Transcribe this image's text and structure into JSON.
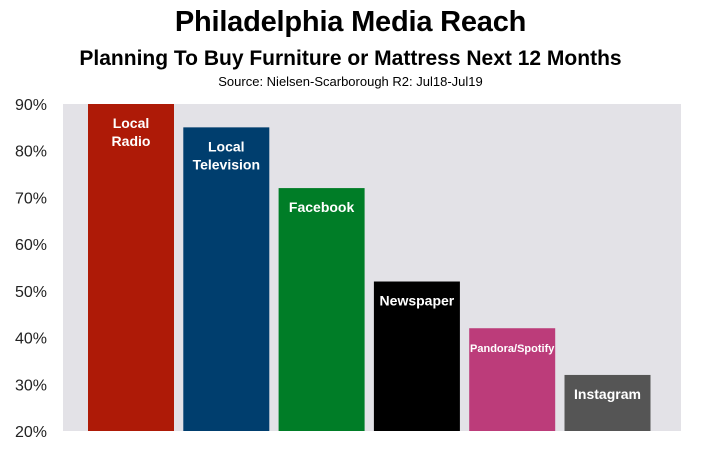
{
  "header": {
    "title": "Philadelphia Media Reach",
    "subtitle": "Planning To Buy Furniture or Mattress Next 12 Months",
    "source": "Source: Nielsen-Scarborough R2: Jul18-Jul19"
  },
  "chart_data": {
    "type": "bar",
    "title": "Philadelphia Media Reach",
    "subtitle": "Planning To Buy Furniture or Mattress Next 12 Months",
    "categories": [
      "Local Radio",
      "Local Television",
      "Facebook",
      "Newspaper",
      "Pandora/Spotify",
      "Instagram"
    ],
    "bar_labels": [
      [
        "Local",
        "Radio"
      ],
      [
        "Local",
        "Television"
      ],
      [
        "Facebook"
      ],
      [
        "Newspaper"
      ],
      [
        "Pandora/Spotify"
      ],
      [
        "Instagram"
      ]
    ],
    "values": [
      90,
      85,
      72,
      52,
      42,
      32
    ],
    "unit": "%",
    "ylim": [
      20,
      90
    ],
    "yticks": [
      90,
      80,
      70,
      60,
      50,
      40,
      30,
      20
    ],
    "ytick_labels": [
      "90%",
      "80%",
      "70%",
      "60%",
      "50%",
      "40%",
      "30%",
      "20%"
    ],
    "grid": false,
    "colors": [
      "#ae1a07",
      "#003e6e",
      "#007d27",
      "#000000",
      "#bc3c7a",
      "#555555"
    ],
    "plot_background": "#e3e2e7"
  }
}
